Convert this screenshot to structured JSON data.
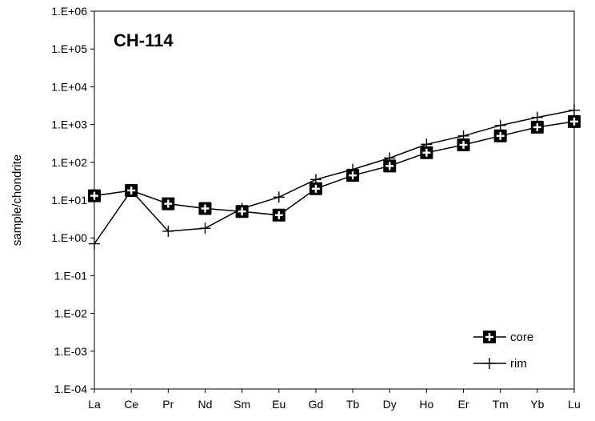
{
  "chart_data": {
    "type": "line",
    "title": "CH-114",
    "ylabel": "sample/chondrite",
    "xlabel": "",
    "yscale": "log",
    "ylim": [
      0.0001,
      1000000
    ],
    "y_tick_labels": [
      "1.E+06",
      "1.E+05",
      "1.E+04",
      "1.E+03",
      "1.E+02",
      "1.E+01",
      "1.E+00",
      "1.E-01",
      "1.E-02",
      "1.E-03",
      "1.E-04"
    ],
    "categories": [
      "La",
      "Ce",
      "Pr",
      "Nd",
      "Sm",
      "Eu",
      "Gd",
      "Tb",
      "Dy",
      "Ho",
      "Er",
      "Tm",
      "Yb",
      "Lu"
    ],
    "grid": false,
    "legend_position": "bottom-right",
    "series": [
      {
        "name": "core",
        "marker": "filled-square-with-white-plus",
        "color": "#000000",
        "values": [
          13,
          18,
          8,
          6,
          5,
          4,
          20,
          45,
          80,
          180,
          290,
          500,
          850,
          1200
        ]
      },
      {
        "name": "rim",
        "marker": "plus",
        "color": "#000000",
        "values": [
          0.7,
          18,
          1.5,
          1.8,
          6,
          12,
          35,
          65,
          130,
          300,
          500,
          950,
          1550,
          2400
        ]
      }
    ]
  }
}
